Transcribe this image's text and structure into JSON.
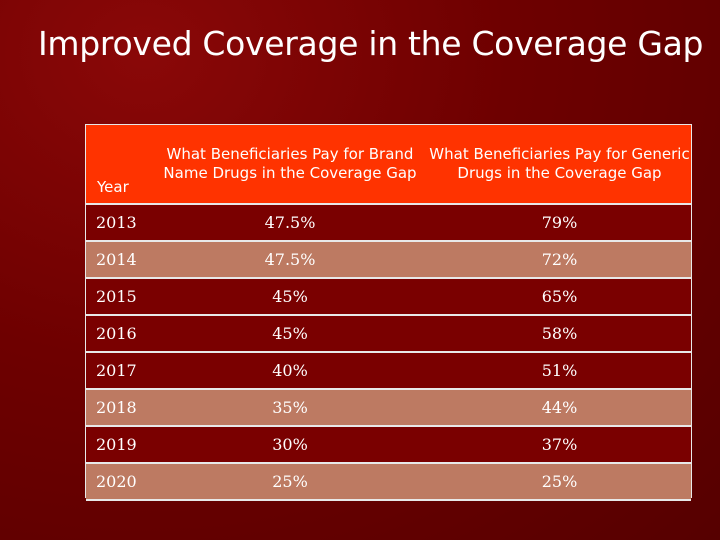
{
  "title": "Improved Coverage in the Coverage Gap",
  "table": {
    "headers": {
      "year": "Year",
      "brand": "What Beneficiaries Pay for Brand Name Drugs in the Coverage Gap",
      "generic": "What Beneficiaries Pay for Generic Drugs in the Coverage Gap"
    },
    "rows": [
      {
        "year": "2013",
        "brand": "47.5%",
        "generic": "79%"
      },
      {
        "year": "2014",
        "brand": "47.5%",
        "generic": "72%"
      },
      {
        "year": "2015",
        "brand": "45%",
        "generic": "65%"
      },
      {
        "year": "2016",
        "brand": "45%",
        "generic": "58%"
      },
      {
        "year": "2017",
        "brand": "40%",
        "generic": "51%"
      },
      {
        "year": "2018",
        "brand": "35%",
        "generic": "44%"
      },
      {
        "year": "2019",
        "brand": "30%",
        "generic": "37%"
      },
      {
        "year": "2020",
        "brand": "25%",
        "generic": "25%"
      }
    ]
  },
  "colors": {
    "background": "#6e0000",
    "header": "#ff3300",
    "row_dark": "#7a0000",
    "row_light": "#bd7a62",
    "grid": "#e8e8e8"
  }
}
